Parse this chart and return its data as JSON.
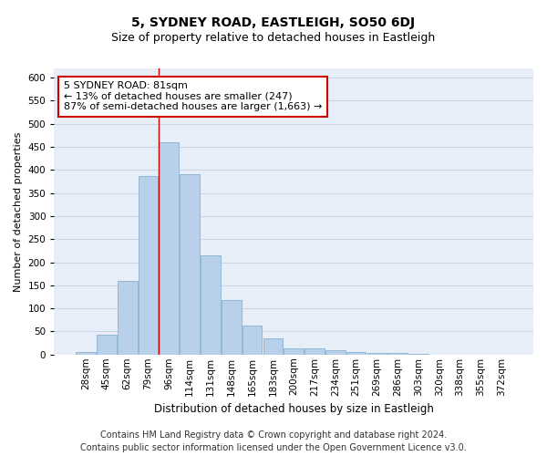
{
  "title": "5, SYDNEY ROAD, EASTLEIGH, SO50 6DJ",
  "subtitle": "Size of property relative to detached houses in Eastleigh",
  "xlabel": "Distribution of detached houses by size in Eastleigh",
  "ylabel": "Number of detached properties",
  "categories": [
    "28sqm",
    "45sqm",
    "62sqm",
    "79sqm",
    "96sqm",
    "114sqm",
    "131sqm",
    "148sqm",
    "165sqm",
    "183sqm",
    "200sqm",
    "217sqm",
    "234sqm",
    "251sqm",
    "269sqm",
    "286sqm",
    "303sqm",
    "320sqm",
    "338sqm",
    "355sqm",
    "372sqm"
  ],
  "values": [
    5,
    43,
    160,
    387,
    460,
    390,
    215,
    118,
    63,
    35,
    14,
    14,
    10,
    5,
    4,
    3,
    1,
    0,
    0,
    0,
    0
  ],
  "bar_color": "#b8d0ea",
  "bar_edge_color": "#7aaad0",
  "grid_color": "#c8d4e8",
  "background_color": "#e8eef8",
  "property_line_x": 3.5,
  "annotation_line1": "5 SYDNEY ROAD: 81sqm",
  "annotation_line2": "← 13% of detached houses are smaller (247)",
  "annotation_line3": "87% of semi-detached houses are larger (1,663) →",
  "annotation_box_color": "#ffffff",
  "annotation_box_edge_color": "#cc0000",
  "footer_line1": "Contains HM Land Registry data © Crown copyright and database right 2024.",
  "footer_line2": "Contains public sector information licensed under the Open Government Licence v3.0.",
  "ylim": [
    0,
    620
  ],
  "yticks": [
    0,
    50,
    100,
    150,
    200,
    250,
    300,
    350,
    400,
    450,
    500,
    550,
    600
  ],
  "title_fontsize": 10,
  "subtitle_fontsize": 9,
  "xlabel_fontsize": 8.5,
  "ylabel_fontsize": 8,
  "footer_fontsize": 7,
  "tick_fontsize": 7.5,
  "annotation_fontsize": 8
}
